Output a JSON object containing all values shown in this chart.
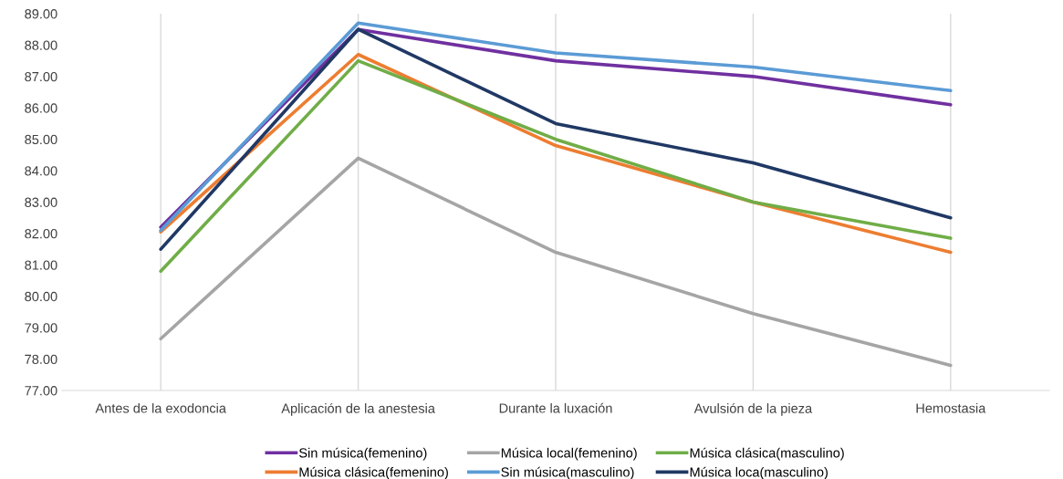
{
  "chart_data": {
    "type": "line",
    "categories": [
      "Antes de la exodoncia",
      "Aplicación de la anestesia",
      "Durante la luxación",
      "Avulsión de la pieza",
      "Hemostasia"
    ],
    "series": [
      {
        "name": "Sin música(femenino)",
        "color": "#7030a0",
        "values": [
          82.2,
          88.5,
          87.5,
          87.0,
          86.1
        ]
      },
      {
        "name": "Música clásica(femenino)",
        "color": "#ed7d31",
        "values": [
          82.05,
          87.7,
          84.8,
          83.0,
          81.4
        ]
      },
      {
        "name": "Música local(femenino)",
        "color": "#a5a5a5",
        "values": [
          78.65,
          84.4,
          81.4,
          79.45,
          77.8
        ]
      },
      {
        "name": "Sin música(masculino)",
        "color": "#5b9bd5",
        "values": [
          82.1,
          88.7,
          87.75,
          87.3,
          86.55
        ]
      },
      {
        "name": "Música clásica(masculino)",
        "color": "#70ad47",
        "values": [
          80.8,
          87.5,
          85.0,
          83.0,
          81.85
        ]
      },
      {
        "name": "Música loca(masculino)",
        "color": "#203864",
        "values": [
          81.5,
          88.5,
          85.5,
          84.25,
          82.5
        ]
      }
    ],
    "ylim": [
      77,
      89
    ],
    "yticks": [
      {
        "value": 77,
        "label": "77.00"
      },
      {
        "value": 78,
        "label": "78.00"
      },
      {
        "value": 79,
        "label": "79.00"
      },
      {
        "value": 80,
        "label": "80.00"
      },
      {
        "value": 81,
        "label": "81.00"
      },
      {
        "value": 82,
        "label": "82.00"
      },
      {
        "value": 83,
        "label": "83.00"
      },
      {
        "value": 84,
        "label": "84.00"
      },
      {
        "value": 85,
        "label": "85.00"
      },
      {
        "value": 86,
        "label": "86.00"
      },
      {
        "value": 87,
        "label": "87.00"
      },
      {
        "value": 88,
        "label": "88.00"
      },
      {
        "value": 89,
        "label": "89.00"
      }
    ],
    "grid": "x",
    "legend": "bottom",
    "marker": "none",
    "line_style": "solid"
  }
}
